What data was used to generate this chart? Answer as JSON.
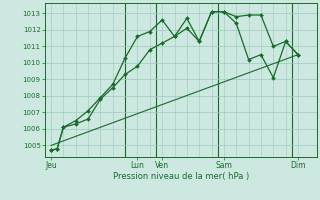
{
  "xlabel": "Pression niveau de la mer( hPa )",
  "ylim": [
    1004.3,
    1013.6
  ],
  "yticks": [
    1005,
    1006,
    1007,
    1008,
    1009,
    1010,
    1011,
    1012,
    1013
  ],
  "xlim": [
    0,
    22
  ],
  "bg_color": "#cce8e0",
  "grid_color": "#99ccbb",
  "line_color": "#1a6b2a",
  "xtick_labels": [
    "Jeu",
    "Lun",
    "Ven",
    "Sam",
    "Dim"
  ],
  "xtick_positions": [
    0.5,
    7.5,
    9.5,
    14.5,
    20.5
  ],
  "vlines": [
    6.5,
    9.0,
    14.0,
    20.0
  ],
  "line1_x": [
    0.5,
    1.0,
    1.5,
    2.5,
    3.5,
    4.5,
    5.5,
    6.5,
    7.5,
    8.5,
    9.5,
    10.5,
    11.5,
    12.5,
    13.5,
    14.5,
    15.5,
    16.5,
    17.5,
    18.5,
    19.5,
    20.5
  ],
  "line1_y": [
    1004.7,
    1004.8,
    1006.1,
    1006.3,
    1006.6,
    1007.8,
    1008.5,
    1009.3,
    1009.8,
    1010.8,
    1011.2,
    1011.6,
    1012.1,
    1011.3,
    1013.1,
    1013.1,
    1012.8,
    1012.9,
    1012.9,
    1011.0,
    1011.3,
    1010.5
  ],
  "line2_x": [
    0.5,
    1.0,
    1.5,
    2.5,
    3.5,
    4.5,
    5.5,
    6.5,
    7.5,
    8.5,
    9.5,
    10.5,
    11.5,
    12.5,
    13.5,
    14.5,
    15.5,
    16.5,
    17.5,
    18.5,
    19.5,
    20.5
  ],
  "line2_y": [
    1004.7,
    1004.8,
    1006.1,
    1006.5,
    1007.1,
    1007.9,
    1008.7,
    1010.3,
    1011.6,
    1011.9,
    1012.6,
    1011.6,
    1012.7,
    1011.3,
    1013.1,
    1013.1,
    1012.4,
    1010.2,
    1010.5,
    1009.1,
    1011.3,
    1010.5
  ],
  "line3_x": [
    0.5,
    20.5
  ],
  "line3_y": [
    1005.0,
    1010.5
  ]
}
